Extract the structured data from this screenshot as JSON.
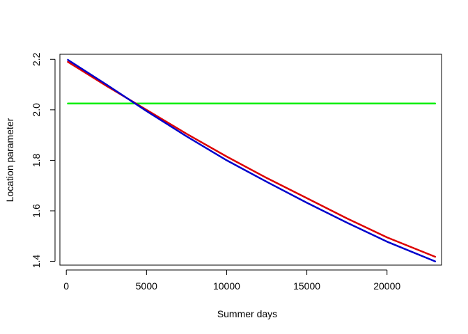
{
  "chart_data": {
    "type": "line",
    "title": "",
    "xlabel": "Summer days",
    "ylabel": "Location parameter",
    "xlim": [
      -400,
      23400
    ],
    "ylim": [
      1.385,
      2.22
    ],
    "x_ticks": [
      0,
      5000,
      10000,
      15000,
      20000
    ],
    "x_tick_labels": [
      "0",
      "5000",
      "10000",
      "15000",
      "20000"
    ],
    "y_ticks": [
      1.4,
      1.6,
      1.8,
      2.0,
      2.2
    ],
    "y_tick_labels": [
      "1.4",
      "1.6",
      "1.8",
      "2.0",
      "2.2"
    ],
    "grid": false,
    "legend": "none",
    "series": [
      {
        "color": "#00ee00",
        "x": [
          100,
          23000
        ],
        "y": [
          2.025,
          2.025
        ]
      },
      {
        "color": "#dd0000",
        "x": [
          100,
          2500,
          5000,
          7500,
          10000,
          12500,
          15000,
          17500,
          20000,
          23000
        ],
        "y": [
          2.19,
          2.095,
          2.0,
          1.905,
          1.815,
          1.73,
          1.65,
          1.57,
          1.495,
          1.418
        ]
      },
      {
        "color": "#0000cc",
        "x": [
          100,
          2500,
          5000,
          7500,
          10000,
          12500,
          15000,
          17500,
          20000,
          23000
        ],
        "y": [
          2.198,
          2.1,
          1.995,
          1.895,
          1.8,
          1.715,
          1.632,
          1.553,
          1.478,
          1.4
        ]
      }
    ]
  }
}
